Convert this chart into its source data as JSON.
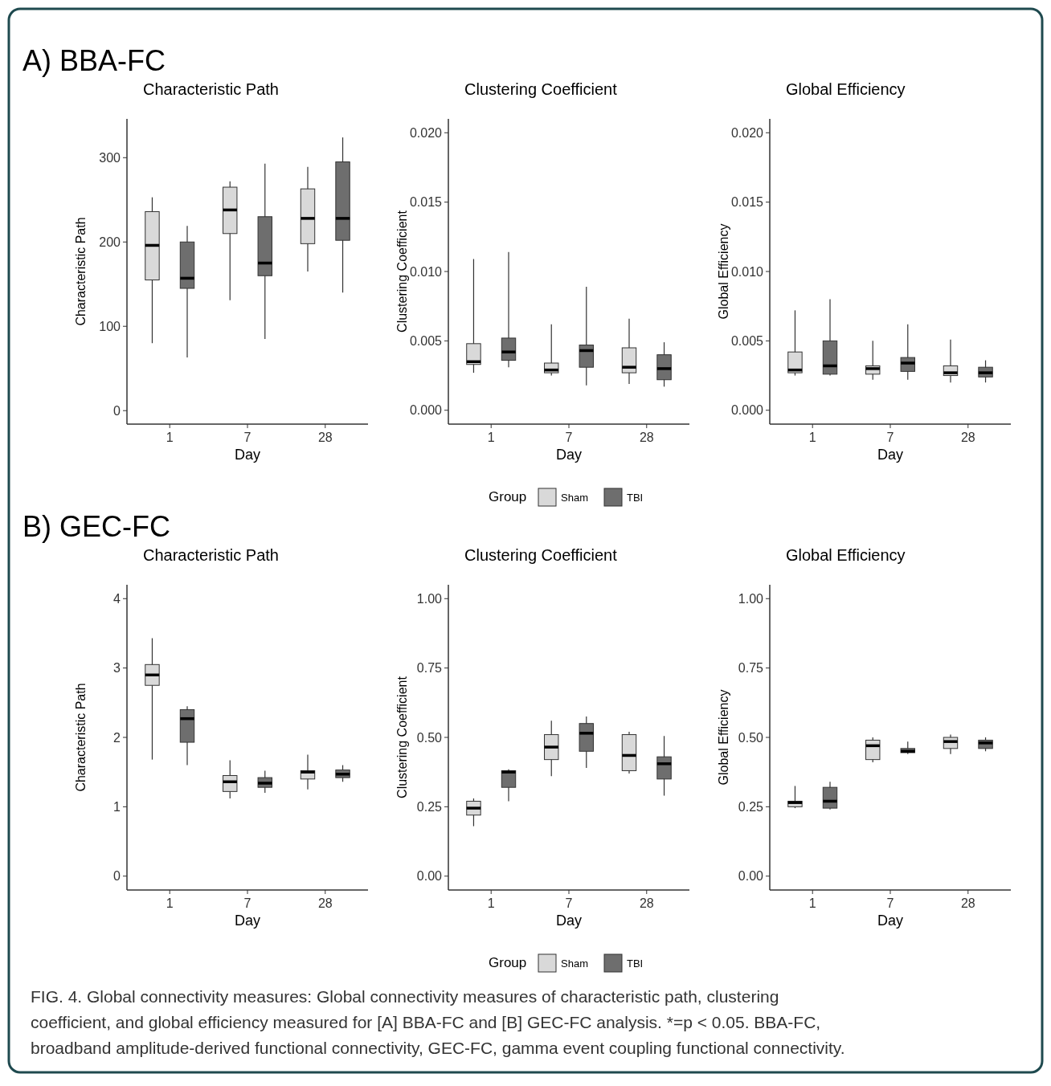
{
  "chart_data": [
    {
      "type": "box",
      "subtitle": "A) BBA-FC",
      "title": "Characteristic Path",
      "xlabel": "Day",
      "ylabel": "Characteristic Path",
      "categories": [
        "1",
        "7",
        "28"
      ],
      "ylim": [
        -16,
        346
      ],
      "yticks": [
        0,
        100,
        200,
        300
      ],
      "series": [
        {
          "color": "#d9d9d9",
          "boxes": [
            {
              "low": 80,
              "q1": 155,
              "median": 196,
              "q3": 236,
              "high": 253
            },
            {
              "low": 131,
              "q1": 210,
              "median": 238,
              "q3": 265,
              "high": 272
            },
            {
              "low": 165,
              "q1": 198,
              "median": 228,
              "q3": 263,
              "high": 289
            }
          ]
        },
        {
          "color": "#6e6e6e",
          "boxes": [
            {
              "low": 63,
              "q1": 145,
              "median": 157,
              "q3": 200,
              "high": 219
            },
            {
              "low": 85,
              "q1": 160,
              "median": 175,
              "q3": 230,
              "high": 293
            },
            {
              "low": 140,
              "q1": 202,
              "median": 228,
              "q3": 295,
              "high": 324
            }
          ]
        }
      ]
    },
    {
      "type": "box",
      "title": "Clustering Coefficient",
      "xlabel": "Day",
      "ylabel": "Clustering Coefficient",
      "categories": [
        "1",
        "7",
        "28"
      ],
      "ylim": [
        -0.001,
        0.021
      ],
      "yticks": [
        {
          "value": 0,
          "label": "0.000"
        },
        {
          "value": 0.005,
          "label": "0.005"
        },
        {
          "value": 0.01,
          "label": "0.010"
        },
        {
          "value": 0.015,
          "label": "0.015"
        },
        {
          "value": 0.02,
          "label": "0.020"
        }
      ],
      "legend": "bottom",
      "legend_title": "Group",
      "series": [
        {
          "name": "Sham",
          "color": "#d9d9d9",
          "boxes": [
            {
              "low": 0.0027,
              "q1": 0.0033,
              "median": 0.0035,
              "q3": 0.0048,
              "high": 0.0109
            },
            {
              "low": 0.0025,
              "q1": 0.0027,
              "median": 0.0029,
              "q3": 0.0034,
              "high": 0.0062
            },
            {
              "low": 0.0019,
              "q1": 0.0027,
              "median": 0.0031,
              "q3": 0.0045,
              "high": 0.0066
            }
          ]
        },
        {
          "name": "TBI",
          "color": "#6e6e6e",
          "boxes": [
            {
              "low": 0.0031,
              "q1": 0.0036,
              "median": 0.0042,
              "q3": 0.0052,
              "high": 0.0114
            },
            {
              "low": 0.0018,
              "q1": 0.0031,
              "median": 0.0043,
              "q3": 0.0047,
              "high": 0.0089
            },
            {
              "low": 0.0017,
              "q1": 0.0022,
              "median": 0.003,
              "q3": 0.004,
              "high": 0.0049
            }
          ]
        }
      ]
    },
    {
      "type": "box",
      "title": "Global Efficiency",
      "xlabel": "Day",
      "ylabel": "Global Efficiency",
      "categories": [
        "1",
        "7",
        "28"
      ],
      "ylim": [
        -0.001,
        0.021
      ],
      "yticks": [
        {
          "value": 0,
          "label": "0.000"
        },
        {
          "value": 0.005,
          "label": "0.005"
        },
        {
          "value": 0.01,
          "label": "0.010"
        },
        {
          "value": 0.015,
          "label": "0.015"
        },
        {
          "value": 0.02,
          "label": "0.020"
        }
      ],
      "series": [
        {
          "color": "#d9d9d9",
          "boxes": [
            {
              "low": 0.0025,
              "q1": 0.0027,
              "median": 0.0029,
              "q3": 0.0042,
              "high": 0.0072
            },
            {
              "low": 0.0022,
              "q1": 0.0026,
              "median": 0.003,
              "q3": 0.0032,
              "high": 0.005
            },
            {
              "low": 0.002,
              "q1": 0.0025,
              "median": 0.0027,
              "q3": 0.0032,
              "high": 0.0051
            }
          ]
        },
        {
          "color": "#6e6e6e",
          "boxes": [
            {
              "low": 0.0025,
              "q1": 0.0026,
              "median": 0.0032,
              "q3": 0.005,
              "high": 0.008
            },
            {
              "low": 0.0022,
              "q1": 0.0028,
              "median": 0.0034,
              "q3": 0.0038,
              "high": 0.0062
            },
            {
              "low": 0.002,
              "q1": 0.0024,
              "median": 0.0027,
              "q3": 0.0031,
              "high": 0.0036
            }
          ]
        }
      ]
    },
    {
      "type": "box",
      "subtitle": "B) GEC-FC",
      "title": "Characteristic Path",
      "xlabel": "Day",
      "ylabel": "Characteristic Path",
      "categories": [
        "1",
        "7",
        "28"
      ],
      "ylim": [
        -0.2,
        4.2
      ],
      "yticks": [
        0,
        1,
        2,
        3,
        4
      ],
      "series": [
        {
          "color": "#d9d9d9",
          "boxes": [
            {
              "low": 1.68,
              "q1": 2.75,
              "median": 2.9,
              "q3": 3.05,
              "high": 3.43
            },
            {
              "low": 1.12,
              "q1": 1.22,
              "median": 1.36,
              "q3": 1.45,
              "high": 1.67
            },
            {
              "low": 1.25,
              "q1": 1.4,
              "median": 1.5,
              "q3": 1.52,
              "high": 1.75
            }
          ]
        },
        {
          "color": "#6e6e6e",
          "boxes": [
            {
              "low": 1.6,
              "q1": 1.93,
              "median": 2.27,
              "q3": 2.4,
              "high": 2.45
            },
            {
              "low": 1.2,
              "q1": 1.28,
              "median": 1.34,
              "q3": 1.42,
              "high": 1.52
            },
            {
              "low": 1.36,
              "q1": 1.42,
              "median": 1.47,
              "q3": 1.53,
              "high": 1.6
            }
          ]
        }
      ]
    },
    {
      "type": "box",
      "title": "Clustering Coefficient",
      "xlabel": "Day",
      "ylabel": "Clustering Coefficient",
      "categories": [
        "1",
        "7",
        "28"
      ],
      "ylim": [
        -0.05,
        1.05
      ],
      "yticks": [
        {
          "value": 0,
          "label": "0.00"
        },
        {
          "value": 0.25,
          "label": "0.25"
        },
        {
          "value": 0.5,
          "label": "0.50"
        },
        {
          "value": 0.75,
          "label": "0.75"
        },
        {
          "value": 1,
          "label": "1.00"
        }
      ],
      "legend": "bottom",
      "legend_title": "Group",
      "series": [
        {
          "name": "Sham",
          "color": "#d9d9d9",
          "boxes": [
            {
              "low": 0.18,
              "q1": 0.22,
              "median": 0.245,
              "q3": 0.27,
              "high": 0.28
            },
            {
              "low": 0.36,
              "q1": 0.42,
              "median": 0.465,
              "q3": 0.51,
              "high": 0.56
            },
            {
              "low": 0.37,
              "q1": 0.38,
              "median": 0.435,
              "q3": 0.51,
              "high": 0.52
            }
          ]
        },
        {
          "name": "TBI",
          "color": "#6e6e6e",
          "boxes": [
            {
              "low": 0.27,
              "q1": 0.32,
              "median": 0.375,
              "q3": 0.38,
              "high": 0.385
            },
            {
              "low": 0.39,
              "q1": 0.45,
              "median": 0.515,
              "q3": 0.55,
              "high": 0.575
            },
            {
              "low": 0.29,
              "q1": 0.35,
              "median": 0.405,
              "q3": 0.43,
              "high": 0.505
            }
          ]
        }
      ]
    },
    {
      "type": "box",
      "title": "Global Efficiency",
      "xlabel": "Day",
      "ylabel": "Global Efficiency",
      "categories": [
        "1",
        "7",
        "28"
      ],
      "ylim": [
        -0.05,
        1.05
      ],
      "yticks": [
        {
          "value": 0,
          "label": "0.00"
        },
        {
          "value": 0.25,
          "label": "0.25"
        },
        {
          "value": 0.5,
          "label": "0.50"
        },
        {
          "value": 0.75,
          "label": "0.75"
        },
        {
          "value": 1,
          "label": "1.00"
        }
      ],
      "annotations": [
        "FIG. 4. Global connectivity measures: Global connectivity measures of characteristic path, clustering coefficient, and global efficiency measured for [A] BBA-FC and [B] GEC-FC analysis. *=p < 0.05. BBA-FC, broadband amplitude-derived functional connectivity, GEC-FC, gamma event coupling functional connectivity."
      ],
      "series": [
        {
          "color": "#d9d9d9",
          "boxes": [
            {
              "low": 0.245,
              "q1": 0.25,
              "median": 0.265,
              "q3": 0.27,
              "high": 0.325
            },
            {
              "low": 0.41,
              "q1": 0.42,
              "median": 0.47,
              "q3": 0.49,
              "high": 0.5
            },
            {
              "low": 0.44,
              "q1": 0.46,
              "median": 0.485,
              "q3": 0.5,
              "high": 0.51
            }
          ]
        },
        {
          "color": "#6e6e6e",
          "boxes": [
            {
              "low": 0.24,
              "q1": 0.245,
              "median": 0.27,
              "q3": 0.32,
              "high": 0.34
            },
            {
              "low": 0.44,
              "q1": 0.445,
              "median": 0.45,
              "q3": 0.46,
              "high": 0.485
            },
            {
              "low": 0.45,
              "q1": 0.46,
              "median": 0.48,
              "q3": 0.49,
              "high": 0.5
            }
          ]
        }
      ]
    }
  ]
}
